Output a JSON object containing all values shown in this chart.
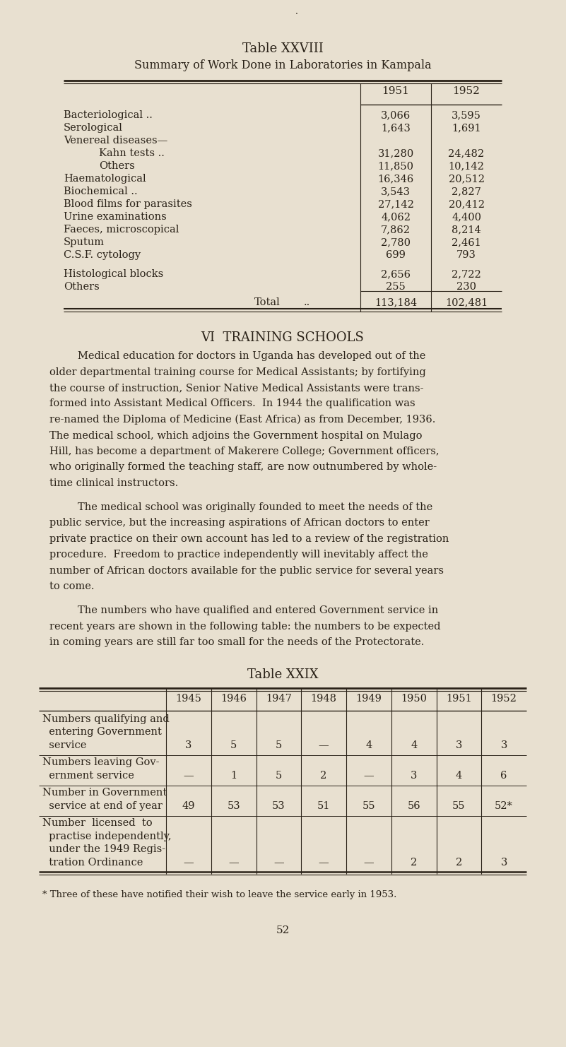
{
  "bg_color": "#e8e0d0",
  "text_color": "#2a2218",
  "page_width": 8.01,
  "page_height": 14.82,
  "table28": {
    "title1": "Table XXVIII",
    "title2": "Summary of Work Done in Laboratories in Kampala",
    "rows": [
      {
        "label": "Bacteriological ..",
        "dots": ".. ..",
        "indent": false,
        "v1951": "3,066",
        "v1952": "3,595"
      },
      {
        "label": "Serological",
        "dots": ".. ..",
        "indent": false,
        "v1951": "1,643",
        "v1952": "1,691"
      },
      {
        "label": "Venereal diseases—",
        "dots": "",
        "indent": false,
        "v1951": "",
        "v1952": ""
      },
      {
        "label": "Kahn tests ..",
        "dots": ".. ..",
        "indent": true,
        "v1951": "31,280",
        "v1952": "24,482"
      },
      {
        "label": "Others",
        "dots": ".. ..",
        "indent": true,
        "v1951": "11,850",
        "v1952": "10,142"
      },
      {
        "label": "Haematological",
        "dots": ".. ..",
        "indent": false,
        "v1951": "16,346",
        "v1952": "20,512"
      },
      {
        "label": "Biochemical ..",
        "dots": ".. ..",
        "indent": false,
        "v1951": "3,543",
        "v1952": "2,827"
      },
      {
        "label": "Blood films for parasites",
        "dots": "..",
        "indent": false,
        "v1951": "27,142",
        "v1952": "20,412"
      },
      {
        "label": "Urine examinations",
        "dots": ".. ..",
        "indent": false,
        "v1951": "4,062",
        "v1952": "4,400"
      },
      {
        "label": "Faeces, microscopical",
        "dots": ".. ..",
        "indent": false,
        "v1951": "7,862",
        "v1952": "8,214"
      },
      {
        "label": "Sputum",
        "dots": ".. ..",
        "indent": false,
        "v1951": "2,780",
        "v1952": "2,461"
      },
      {
        "label": "C.S.F. cytology",
        "dots": ".. ..",
        "indent": false,
        "v1951": "699",
        "v1952": "793"
      },
      {
        "label": "",
        "dots": "",
        "indent": false,
        "v1951": "",
        "v1952": ""
      },
      {
        "label": "Histological blocks",
        "dots": ".. ..",
        "indent": false,
        "v1951": "2,656",
        "v1952": "2,722"
      },
      {
        "label": "Others",
        "dots": ".. ..",
        "indent": false,
        "v1951": "255",
        "v1952": "230"
      }
    ],
    "total_1951": "113,184",
    "total_1952": "102,481"
  },
  "section_title": "VI  TRAINING SCHOOLS",
  "para1_lines": [
    "Medical education for doctors in Uganda has developed out of the",
    "older departmental training course for Medical Assistants; by fortifying",
    "the course of instruction, Senior Native Medical Assistants were trans-",
    "formed into Assistant Medical Officers.  In 1944 the qualification was",
    "re-named the Diploma of Medicine (East Africa) as from December, 1936.",
    "The medical school, which adjoins the Government hospital on Mulago",
    "Hill, has become a department of Makerere College; Government officers,",
    "who originally formed the teaching staff, are now outnumbered by whole-",
    "time clinical instructors."
  ],
  "para2_lines": [
    "The medical school was originally founded to meet the needs of the",
    "public service, but the increasing aspirations of African doctors to enter",
    "private practice on their own account has led to a review of the registration",
    "procedure.  Freedom to practice independently will inevitably affect the",
    "number of African doctors available for the public service for several years",
    "to come."
  ],
  "para3_lines": [
    "The numbers who have qualified and entered Government service in",
    "recent years are shown in the following table: the numbers to be expected",
    "in coming years are still far too small for the needs of the Protectorate."
  ],
  "table29": {
    "title": "Table XXIX",
    "col_headers": [
      "1945",
      "1946",
      "1947",
      "1948",
      "1949",
      "1950",
      "1951",
      "1952"
    ],
    "row1_label": [
      "Numbers qualifying and",
      "  entering Government",
      "  service"
    ],
    "row1_vals": [
      "3",
      "5",
      "5",
      "—",
      "4",
      "4",
      "3",
      "3"
    ],
    "row1_val_line": 2,
    "row2_label": [
      "Numbers leaving Gov-",
      "  ernment service"
    ],
    "row2_vals": [
      "—",
      "1",
      "5",
      "2",
      "—",
      "3",
      "4",
      "6"
    ],
    "row2_val_line": 1,
    "row3_label": [
      "Number in Government",
      "  service at end of year"
    ],
    "row3_vals": [
      "49",
      "53",
      "53",
      "51",
      "55",
      "56",
      "55",
      "52*"
    ],
    "row3_val_line": 1,
    "row4_label": [
      "Number  licensed  to",
      "  practise independently,",
      "  under the 1949 Regis-",
      "  tration Ordinance"
    ],
    "row4_vals": [
      "—",
      "—",
      "—",
      "—",
      "—",
      "2",
      "2",
      "3"
    ],
    "row4_val_line": 3
  },
  "footnote": "* Three of these have notified their wish to leave the service early in 1953.",
  "page_number": "52"
}
